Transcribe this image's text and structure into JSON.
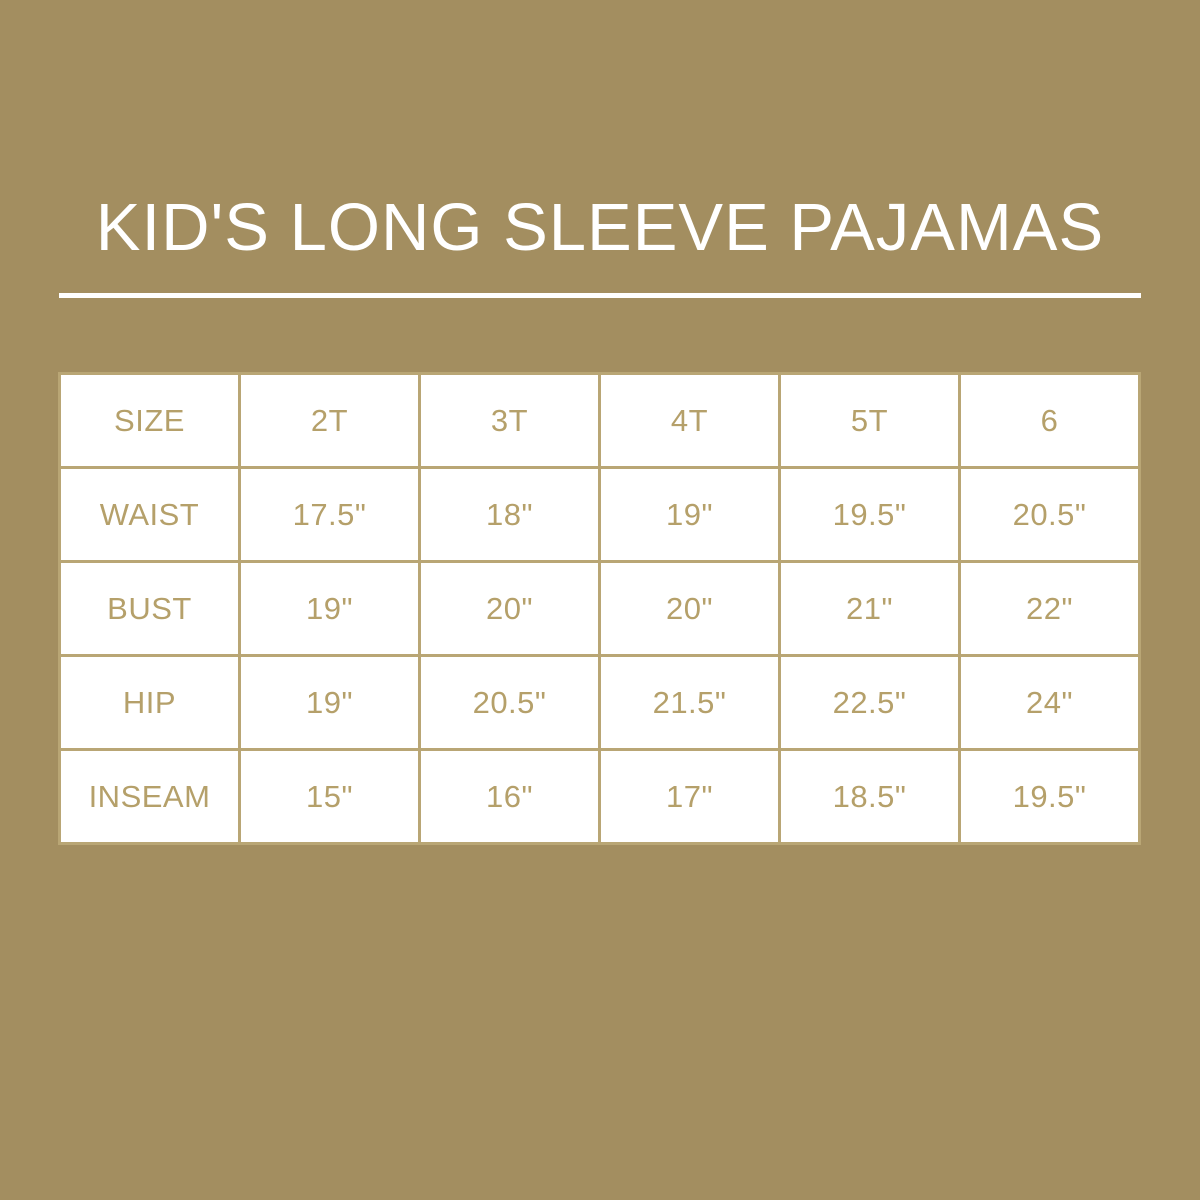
{
  "title": "KID'S LONG SLEEVE PAJAMAS",
  "colors": {
    "background": "#a38e60",
    "text": "#b5a06a",
    "border": "#b9a675",
    "cell": "#ffffff"
  },
  "table": {
    "rows": [
      [
        "SIZE",
        "2T",
        "3T",
        "4T",
        "5T",
        "6"
      ],
      [
        "WAIST",
        "17.5\"",
        "18\"",
        "19\"",
        "19.5\"",
        "20.5\""
      ],
      [
        "BUST",
        "19\"",
        "20\"",
        "20\"",
        "21\"",
        "22\""
      ],
      [
        "HIP",
        "19\"",
        "20.5\"",
        "21.5\"",
        "22.5\"",
        "24\""
      ],
      [
        "INSEAM",
        "15\"",
        "16\"",
        "17\"",
        "18.5\"",
        "19.5\""
      ]
    ]
  }
}
